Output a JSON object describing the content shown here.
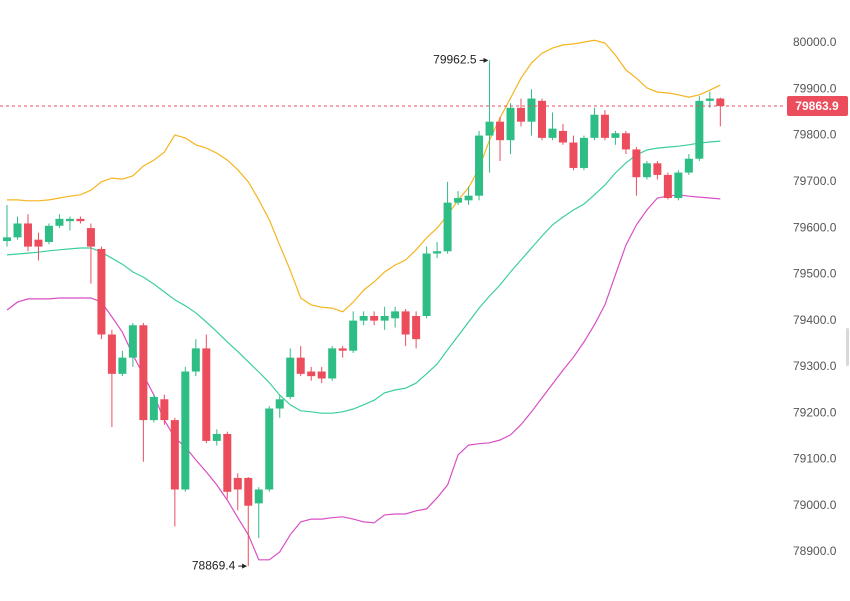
{
  "chart_data": {
    "type": "candlestick",
    "open": [
      79572,
      79580,
      79610,
      79575,
      79570,
      79605,
      79615,
      79620,
      79600,
      79555,
      79370,
      79285,
      79320,
      79390,
      79185,
      79230,
      79185,
      79035,
      79290,
      79340,
      79140,
      79155,
      79060,
      79060,
      79005,
      79035,
      79210,
      79235,
      79320,
      79290,
      79290,
      79275,
      79340,
      79335,
      79400,
      79410,
      79400,
      79405,
      79420,
      79410,
      79410,
      79545,
      79550,
      79655,
      79660,
      79670,
      79800,
      79830,
      79790,
      79860,
      79830,
      79875,
      79795,
      79810,
      79785,
      79730,
      79795,
      79845,
      79795,
      79805,
      79770,
      79710,
      79740,
      79715,
      79665,
      79720,
      79750,
      79875,
      79880
    ],
    "high": [
      79650,
      79625,
      79630,
      79590,
      79610,
      79630,
      79625,
      79625,
      79610,
      79560,
      79380,
      79335,
      79395,
      79395,
      79240,
      79240,
      79190,
      79300,
      79360,
      79370,
      79165,
      79160,
      79070,
      79062,
      79040,
      79215,
      79240,
      79340,
      79345,
      79300,
      79300,
      79345,
      79345,
      79420,
      79420,
      79420,
      79430,
      79430,
      79425,
      79420,
      79560,
      79570,
      79700,
      79680,
      79690,
      79810,
      79962.5,
      79840,
      79870,
      79880,
      79900,
      79880,
      79850,
      79825,
      79800,
      79800,
      79860,
      79855,
      79810,
      79810,
      79775,
      79745,
      79745,
      79720,
      79725,
      79760,
      79885,
      79895,
      79882
    ],
    "low": [
      79560,
      79575,
      79550,
      79530,
      79565,
      79600,
      79595,
      79610,
      79480,
      79360,
      79170,
      79280,
      79300,
      79095,
      79180,
      79175,
      78955,
      79030,
      79280,
      79135,
      79130,
      79015,
      78990,
      78869.4,
      78930,
      79030,
      79190,
      79230,
      79280,
      79270,
      79265,
      79270,
      79320,
      79330,
      79390,
      79390,
      79380,
      79385,
      79345,
      79340,
      79405,
      79535,
      79545,
      79650,
      79650,
      79660,
      79720,
      79745,
      79760,
      79820,
      79800,
      79790,
      79790,
      79780,
      79725,
      79725,
      79790,
      79790,
      79780,
      79760,
      79670,
      79705,
      79705,
      79662,
      79660,
      79715,
      79745,
      79860,
      79820
    ],
    "close": [
      79580,
      79610,
      79560,
      79560,
      79605,
      79620,
      79620,
      79615,
      79560,
      79370,
      79285,
      79320,
      79390,
      79185,
      79235,
      79185,
      79035,
      79290,
      79340,
      79140,
      79155,
      79030,
      79035,
      79000,
      79035,
      79210,
      79230,
      79320,
      79285,
      79280,
      79275,
      79340,
      79335,
      79400,
      79410,
      79400,
      79410,
      79420,
      79370,
      79360,
      79545,
      79550,
      79655,
      79665,
      79670,
      79800,
      79830,
      79790,
      79860,
      79830,
      79880,
      79795,
      79815,
      79785,
      79730,
      79795,
      79845,
      79795,
      79805,
      79770,
      79710,
      79740,
      79715,
      79665,
      79720,
      79750,
      79875,
      79880,
      79863.9
    ],
    "up_color": "#2ebd85",
    "down_color": "#eb4d5c",
    "bands": [
      {
        "color": "#f5b51f",
        "values": [
          79661,
          79661,
          79659,
          79659,
          79661,
          79665,
          79669,
          79672,
          79682,
          79700,
          79708,
          79706,
          79713,
          79734,
          79747,
          79764,
          79801,
          79795,
          79780,
          79773,
          79762,
          79747,
          79726,
          79700,
          79661,
          79618,
          79563,
          79509,
          79449,
          79434,
          79429,
          79427,
          79419,
          79440,
          79466,
          79484,
          79505,
          79520,
          79531,
          79553,
          79579,
          79600,
          79628,
          79661,
          79687,
          79730,
          79790,
          79838,
          79881,
          79924,
          79957,
          79978,
          79989,
          79996,
          79998,
          80002,
          80006,
          80000,
          79974,
          79942,
          79924,
          79903,
          79894,
          79892,
          79888,
          79883,
          79888,
          79898,
          79909
        ]
      },
      {
        "color": "#3ccf9c",
        "values": [
          79542,
          79544,
          79546,
          79548,
          79551,
          79553,
          79555,
          79557,
          79557,
          79548,
          79535,
          79522,
          79505,
          79494,
          79479,
          79462,
          79445,
          79432,
          79417,
          79397,
          79376,
          79354,
          79333,
          79311,
          79289,
          79266,
          79239,
          79218,
          79205,
          79203,
          79200,
          79200,
          79203,
          79209,
          79218,
          79228,
          79244,
          79250,
          79254,
          79265,
          79285,
          79306,
          79337,
          79367,
          79397,
          79427,
          79453,
          79477,
          79505,
          79531,
          79557,
          79583,
          79607,
          79624,
          79639,
          79652,
          79672,
          79693,
          79719,
          79741,
          79758,
          79769,
          79773,
          79775,
          79777,
          79780,
          79784,
          79786,
          79788
        ]
      },
      {
        "color": "#d84fc6",
        "values": [
          79423,
          79440,
          79447,
          79447,
          79447,
          79449,
          79449,
          79449,
          79449,
          79440,
          79408,
          79375,
          79326,
          79283,
          79239,
          79185,
          79147,
          79127,
          79099,
          79073,
          79045,
          79012,
          78974,
          78937,
          78883,
          78883,
          78900,
          78937,
          78965,
          78971,
          78971,
          78974,
          78976,
          78971,
          78965,
          78963,
          78980,
          78982,
          78982,
          78989,
          78993,
          79017,
          79045,
          79110,
          79131,
          79134,
          79136,
          79142,
          79153,
          79175,
          79203,
          79233,
          79263,
          79293,
          79321,
          79354,
          79391,
          79434,
          79499,
          79563,
          79607,
          79639,
          79665,
          79669,
          79672,
          79669,
          79667,
          79665,
          79663
        ]
      }
    ],
    "ylim": [
      78794,
      80093
    ],
    "yticks": [
      {
        "value": 78900,
        "label": "78900.0"
      },
      {
        "value": 79000,
        "label": "79000.0"
      },
      {
        "value": 79100,
        "label": "79100.0"
      },
      {
        "value": 79200,
        "label": "79200.0"
      },
      {
        "value": 79300,
        "label": "79300.0"
      },
      {
        "value": 79400,
        "label": "79400.0"
      },
      {
        "value": 79500,
        "label": "79500.0"
      },
      {
        "value": 79600,
        "label": "79600.0"
      },
      {
        "value": 79700,
        "label": "79700.0"
      },
      {
        "value": 79800,
        "label": "79800.0"
      },
      {
        "value": 79900,
        "label": "79900.0"
      },
      {
        "value": 80000,
        "label": "80000.0"
      }
    ]
  }
}
